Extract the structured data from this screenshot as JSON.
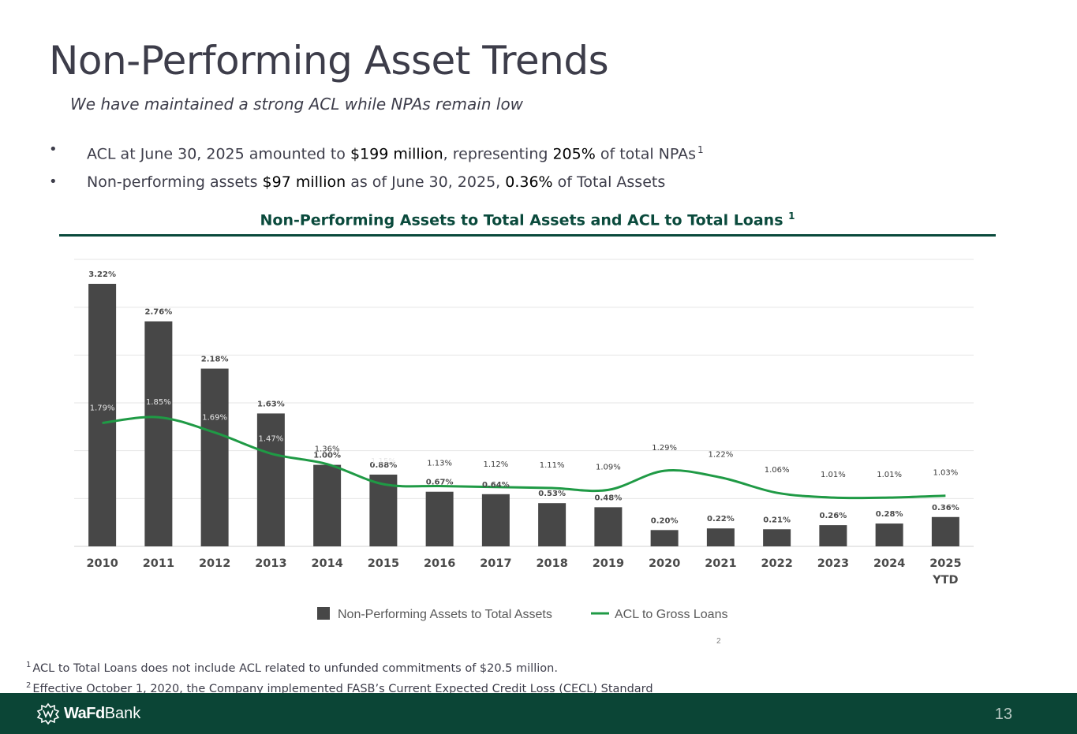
{
  "slide": {
    "title": "Non-Performing Asset Trends",
    "subtitle": "We have maintained a strong ACL while NPAs remain low",
    "bullets": [
      {
        "parts": [
          {
            "text": "ACL at June 30, 2025 amounted to ",
            "hl": false
          },
          {
            "text": "$199 million",
            "hl": true
          },
          {
            "text": ", representing ",
            "hl": false
          },
          {
            "text": "205%",
            "hl": true
          },
          {
            "text": " of total NPAs",
            "hl": false
          }
        ],
        "sup": "1"
      },
      {
        "parts": [
          {
            "text": "Non-performing assets ",
            "hl": false
          },
          {
            "text": "$97 million",
            "hl": true
          },
          {
            "text": " as of June 30, 2025, ",
            "hl": false
          },
          {
            "text": "0.36%",
            "hl": true
          },
          {
            "text": " of Total Assets",
            "hl": false
          }
        ],
        "sup": ""
      }
    ],
    "chart_heading": "Non-Performing Assets to Total Assets and ACL to Total Loans",
    "chart_heading_sup": "1",
    "chart_note_mark": "2",
    "footnotes": [
      {
        "mark": "1",
        "text": "ACL to Total Loans does not include ACL related to unfunded commitments of $20.5 million."
      },
      {
        "mark": "2",
        "text": "Effective October 1, 2020, the Company implemented FASB’s Current Expected Credit Loss (CECL) Standard"
      }
    ],
    "logo_text_bold": "WaFd",
    "logo_text_regular": "Bank",
    "logo_icon": "wafd-sun-logo-icon",
    "page_number": "13",
    "colors": {
      "bar": "#474747",
      "line": "#1f9a45",
      "heading": "#0a4a3c",
      "footer": "#0b4536"
    }
  },
  "chart_data": {
    "type": "bar",
    "title": "Non-Performing Assets to Total Assets and ACL to Total Loans",
    "categories": [
      "2010",
      "2011",
      "2012",
      "2013",
      "2014",
      "2015",
      "2016",
      "2017",
      "2018",
      "2019",
      "2020",
      "2021",
      "2022",
      "2023",
      "2024",
      "2025 YTD"
    ],
    "series": [
      {
        "name": "Non-Performing Assets to Total Assets",
        "type": "bar",
        "values": [
          3.22,
          2.76,
          2.18,
          1.63,
          1.0,
          0.88,
          0.67,
          0.64,
          0.53,
          0.48,
          0.2,
          0.22,
          0.21,
          0.26,
          0.28,
          0.36
        ],
        "labels": [
          "3.22%",
          "2.76%",
          "2.18%",
          "1.63%",
          "1.00%",
          "0.88%",
          "0.67%",
          "0.64%",
          "0.53%",
          "0.48%",
          "0.20%",
          "0.22%",
          "0.21%",
          "0.26%",
          "0.28%",
          "0.36%"
        ]
      },
      {
        "name": "ACL to Gross Loans",
        "type": "line",
        "values": [
          1.79,
          1.85,
          1.69,
          1.47,
          1.36,
          1.15,
          1.13,
          1.12,
          1.11,
          1.09,
          1.29,
          1.22,
          1.06,
          1.01,
          1.01,
          1.03
        ],
        "labels": [
          "1.79%",
          "1.85%",
          "1.69%",
          "1.47%",
          "1.36%",
          "1.15%",
          "1.13%",
          "1.12%",
          "1.11%",
          "1.09%",
          "1.29%",
          "1.22%",
          "1.06%",
          "1.01%",
          "1.01%",
          "1.03%"
        ]
      }
    ],
    "legend": "bottom",
    "grid": true,
    "bar_ylim": [
      0,
      3.5
    ],
    "line_ylim": [
      0.5,
      3.5
    ]
  }
}
